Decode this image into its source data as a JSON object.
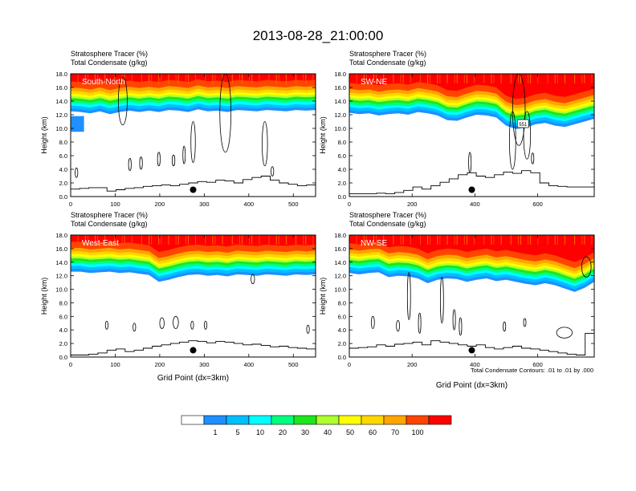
{
  "page": {
    "title": "2013-08-28_21:00:00"
  },
  "chart_data": {
    "type": "heatmap",
    "title": "2013-08-28_21:00:00",
    "colorbar": {
      "colors": [
        "#ffffff",
        "#1e90ff",
        "#00bfff",
        "#00ffff",
        "#00ff7f",
        "#1ee61e",
        "#adff2f",
        "#ffff00",
        "#ffd700",
        "#ffa500",
        "#ff4500",
        "#ff0000"
      ],
      "labels": [
        "1",
        "5",
        "10",
        "20",
        "30",
        "40",
        "50",
        "60",
        "70",
        "100"
      ]
    },
    "contour_note": "Total Condensate Contours: .01 to .01 by .000",
    "panels": [
      {
        "id": "south-north",
        "name": "South-North",
        "title_line1": "Stratosphere Tracer   (%)",
        "title_line2": "Total Condensate   (g/kg)",
        "ylabel": "Height (km)",
        "xlabel": "",
        "xlim": [
          0,
          550
        ],
        "ylim": [
          0,
          18
        ],
        "xticks": [
          "0",
          "100",
          "200",
          "300",
          "400",
          "500"
        ],
        "xtick_values": [
          0,
          100,
          200,
          300,
          400,
          500
        ],
        "yticks": [
          "0.0",
          "2.0",
          "4.0",
          "6.0",
          "8.0",
          "10.0",
          "12.0",
          "14.0",
          "16.0",
          "18.0"
        ],
        "tracer_base_km": [
          12.9,
          12.8,
          12.6,
          12.9,
          12.5,
          12.8,
          13.0,
          12.8,
          13.0,
          12.8,
          13.1,
          13.0,
          12.8,
          13.2,
          12.9,
          13.0,
          12.8,
          13.1,
          13.0,
          12.9,
          13.1,
          13.0,
          12.9,
          13.1,
          13.0,
          13.1
        ],
        "terrain_km": [
          1.1,
          1.2,
          1.3,
          1.3,
          0.8,
          1.0,
          1.2,
          1.3,
          1.5,
          1.6,
          1.7,
          1.6,
          1.8,
          2.0,
          2.2,
          2.1,
          2.4,
          2.3,
          2.0,
          2.5,
          2.8,
          3.0,
          2.4,
          2.0,
          1.8,
          1.6,
          1.7
        ],
        "marker": {
          "x": 275,
          "y_km": 1.0
        },
        "side_patch": {
          "x0": 0,
          "x1": 30,
          "y0_km": 9.5,
          "y1_km": 11.8
        },
        "contours": [
          {
            "x": 107,
            "y_km": 10.5,
            "w": 20,
            "h_km": 7.0
          },
          {
            "x": 335,
            "y_km": 6.5,
            "w": 25,
            "h_km": 11.5
          },
          {
            "x": 270,
            "y_km": 5.0,
            "w": 10,
            "h_km": 6.0
          },
          {
            "x": 430,
            "y_km": 4.5,
            "w": 12,
            "h_km": 6.5
          },
          {
            "x": 10,
            "y_km": 2.8,
            "w": 6,
            "h_km": 1.4
          },
          {
            "x": 130,
            "y_km": 3.8,
            "w": 6,
            "h_km": 1.8
          },
          {
            "x": 155,
            "y_km": 4.0,
            "w": 6,
            "h_km": 1.8
          },
          {
            "x": 195,
            "y_km": 4.5,
            "w": 6,
            "h_km": 2.0
          },
          {
            "x": 228,
            "y_km": 4.5,
            "w": 6,
            "h_km": 1.6
          },
          {
            "x": 252,
            "y_km": 4.8,
            "w": 4,
            "h_km": 2.6
          },
          {
            "x": 450,
            "y_km": 3.0,
            "w": 6,
            "h_km": 1.4
          }
        ]
      },
      {
        "id": "sw-ne",
        "name": "SW-NE",
        "title_line1": "Stratosphere Tracer   (%)",
        "title_line2": "Total Condensate   (g/kg)",
        "ylabel": "Height (km)",
        "xlabel": "",
        "xlim": [
          0,
          780
        ],
        "ylim": [
          0,
          18
        ],
        "xticks": [
          "0",
          "200",
          "400",
          "600"
        ],
        "xtick_values": [
          0,
          200,
          400,
          600
        ],
        "yticks": [
          "0.0",
          "2.0",
          "4.0",
          "6.0",
          "8.0",
          "10.0",
          "12.0",
          "14.0",
          "16.0",
          "18.0"
        ],
        "tracer_base_km": [
          12.7,
          12.5,
          12.6,
          12.3,
          12.5,
          12.6,
          12.4,
          12.8,
          12.6,
          12.3,
          11.6,
          11.5,
          12.0,
          12.4,
          12.3,
          12.0,
          10.8,
          10.3,
          10.5,
          11.0,
          11.2,
          10.8,
          10.6,
          11.0,
          11.4,
          11.8
        ],
        "terrain_km": [
          0.4,
          0.4,
          0.4,
          0.5,
          0.4,
          0.6,
          0.9,
          1.4,
          1.1,
          1.6,
          2.1,
          2.6,
          3.2,
          3.5,
          3.0,
          2.8,
          3.2,
          3.6,
          3.4,
          3.8,
          3.5,
          2.0,
          1.6,
          1.5,
          1.4,
          1.4,
          1.4
        ],
        "marker": {
          "x": 390,
          "y_km": 1.0
        },
        "side_patch": null,
        "label_box": {
          "x": 553,
          "y_km": 10.7,
          "text": "551"
        },
        "contours": [
          {
            "x": 520,
            "y_km": 7.5,
            "w": 40,
            "h_km": 10.5
          },
          {
            "x": 510,
            "y_km": 4.0,
            "w": 20,
            "h_km": 8.5
          },
          {
            "x": 555,
            "y_km": 5.5,
            "w": 22,
            "h_km": 7.0
          },
          {
            "x": 380,
            "y_km": 3.5,
            "w": 8,
            "h_km": 3.0
          },
          {
            "x": 580,
            "y_km": 4.8,
            "w": 6,
            "h_km": 1.6
          }
        ]
      },
      {
        "id": "west-east",
        "name": "West-East",
        "title_line1": "Stratosphere Tracer   (%)",
        "title_line2": "Total Condensate   (g/kg)",
        "ylabel": "Height (km)",
        "xlabel": "Grid Point (dx=3km)",
        "xlim": [
          0,
          550
        ],
        "ylim": [
          0,
          18
        ],
        "xticks": [
          "0",
          "100",
          "200",
          "300",
          "400",
          "500"
        ],
        "xtick_values": [
          0,
          100,
          200,
          300,
          400,
          500
        ],
        "yticks": [
          "0.0",
          "2.0",
          "4.0",
          "6.0",
          "8.0",
          "10.0",
          "12.0",
          "14.0",
          "16.0",
          "18.0"
        ],
        "tracer_base_km": [
          13.0,
          13.0,
          12.8,
          12.9,
          13.0,
          12.8,
          12.9,
          12.7,
          12.5,
          11.5,
          11.8,
          12.2,
          12.5,
          12.6,
          12.4,
          12.5,
          12.3,
          12.6,
          12.5,
          12.4,
          12.6,
          12.5,
          12.4,
          12.6,
          12.5,
          12.6
        ],
        "terrain_km": [
          0.3,
          0.3,
          0.4,
          0.6,
          1.0,
          1.2,
          0.8,
          1.0,
          1.3,
          1.6,
          1.8,
          2.0,
          2.2,
          2.4,
          2.3,
          2.1,
          2.3,
          2.2,
          2.0,
          1.8,
          1.9,
          1.7,
          1.5,
          1.6,
          1.4,
          1.3,
          1.2
        ],
        "marker": {
          "x": 275,
          "y_km": 1.0
        },
        "side_patch": null,
        "contours": [
          {
            "x": 405,
            "y_km": 10.8,
            "w": 8,
            "h_km": 1.4
          },
          {
            "x": 78,
            "y_km": 4.1,
            "w": 6,
            "h_km": 1.2
          },
          {
            "x": 140,
            "y_km": 3.8,
            "w": 6,
            "h_km": 1.2
          },
          {
            "x": 200,
            "y_km": 4.2,
            "w": 10,
            "h_km": 1.6
          },
          {
            "x": 230,
            "y_km": 4.2,
            "w": 12,
            "h_km": 1.8
          },
          {
            "x": 270,
            "y_km": 4.1,
            "w": 6,
            "h_km": 1.2
          },
          {
            "x": 300,
            "y_km": 4.1,
            "w": 6,
            "h_km": 1.2
          },
          {
            "x": 530,
            "y_km": 3.5,
            "w": 6,
            "h_km": 1.2
          }
        ]
      },
      {
        "id": "nw-se",
        "name": "NW-SE",
        "title_line1": "Stratosphere Tracer   (%)",
        "title_line2": "Total Condensate   (g/kg)",
        "ylabel": "Height (km)",
        "xlabel": "Grid Point (dx=3km)",
        "xlim": [
          0,
          780
        ],
        "ylim": [
          0,
          18
        ],
        "xticks": [
          "0",
          "200",
          "400",
          "600"
        ],
        "xtick_values": [
          0,
          200,
          400,
          600
        ],
        "yticks": [
          "0.0",
          "2.0",
          "4.0",
          "6.0",
          "8.0",
          "10.0",
          "12.0",
          "14.0",
          "16.0",
          "18.0"
        ],
        "tracer_base_km": [
          12.8,
          12.6,
          12.8,
          12.9,
          12.2,
          12.4,
          12.3,
          12.0,
          11.3,
          11.8,
          12.0,
          11.9,
          11.5,
          11.8,
          12.0,
          11.6,
          11.8,
          11.5,
          11.2,
          11.0,
          11.3,
          11.0,
          10.5,
          10.0,
          10.6,
          11.5
        ],
        "terrain_km": [
          1.3,
          1.4,
          1.5,
          1.8,
          1.6,
          1.9,
          2.0,
          2.2,
          1.8,
          2.4,
          2.2,
          2.0,
          1.8,
          1.6,
          1.8,
          1.4,
          1.2,
          1.4,
          1.6,
          1.3,
          1.2,
          1.0,
          0.8,
          0.6,
          0.4,
          0.3,
          3.5
        ],
        "marker": {
          "x": 390,
          "y_km": 1.0
        },
        "side_patch": null,
        "contours": [
          {
            "x": 185,
            "y_km": 5.5,
            "w": 10,
            "h_km": 7.0
          },
          {
            "x": 290,
            "y_km": 5.0,
            "w": 10,
            "h_km": 6.8
          },
          {
            "x": 330,
            "y_km": 4.0,
            "w": 8,
            "h_km": 3.0
          },
          {
            "x": 220,
            "y_km": 3.5,
            "w": 8,
            "h_km": 3.0
          },
          {
            "x": 350,
            "y_km": 3.2,
            "w": 8,
            "h_km": 2.6
          },
          {
            "x": 70,
            "y_km": 4.2,
            "w": 10,
            "h_km": 1.8
          },
          {
            "x": 150,
            "y_km": 3.8,
            "w": 10,
            "h_km": 1.6
          },
          {
            "x": 490,
            "y_km": 3.8,
            "w": 8,
            "h_km": 1.4
          },
          {
            "x": 660,
            "y_km": 2.8,
            "w": 50,
            "h_km": 1.6
          },
          {
            "x": 740,
            "y_km": 11.8,
            "w": 30,
            "h_km": 3.0
          },
          {
            "x": 555,
            "y_km": 4.5,
            "w": 6,
            "h_km": 1.2
          }
        ]
      }
    ]
  }
}
